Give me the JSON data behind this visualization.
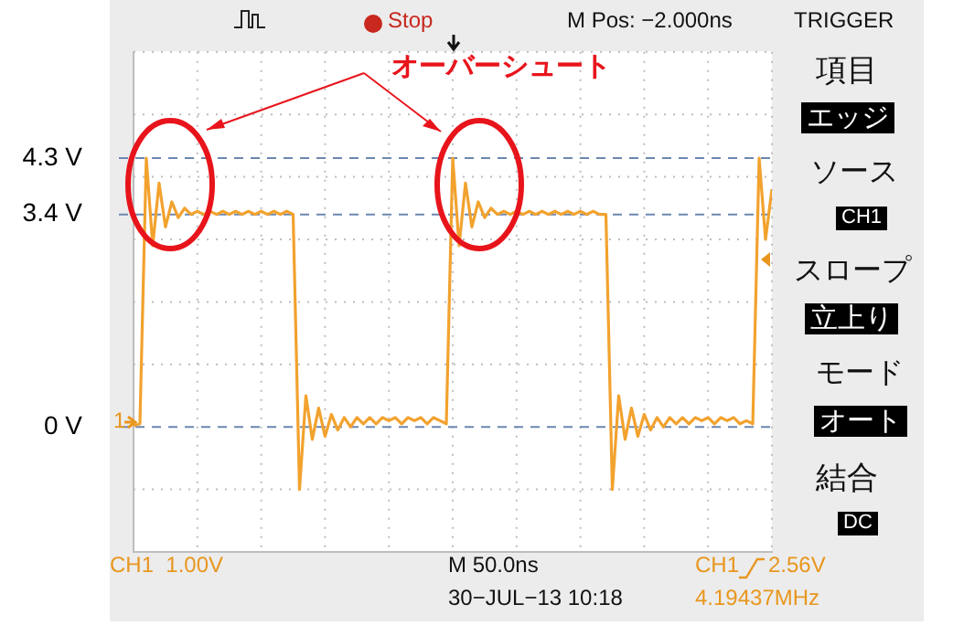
{
  "chart_data": {
    "type": "line",
    "categories": [
      null,
      null,
      null,
      null,
      null,
      null,
      null,
      null,
      null,
      null,
      null,
      null,
      null,
      null,
      null,
      null,
      null,
      null,
      null,
      null,
      null,
      null,
      null,
      null,
      null,
      null,
      null,
      null,
      null,
      null,
      null,
      null,
      null,
      null,
      null,
      null,
      null,
      null,
      null,
      null,
      null,
      null,
      null,
      null,
      null,
      null,
      null,
      null,
      null,
      null,
      null,
      null,
      null,
      null,
      null,
      null,
      null,
      null,
      null,
      null,
      null,
      null,
      null,
      null,
      null,
      null,
      null,
      null,
      null,
      null,
      null,
      null,
      null,
      null,
      null,
      null,
      null,
      null,
      null,
      null,
      null,
      null,
      null,
      null,
      null,
      null,
      null,
      null,
      null,
      null,
      null,
      null,
      null,
      null,
      null,
      null,
      null,
      null,
      null,
      null,
      null
    ],
    "ylim": [
      -2,
      6
    ],
    "yticks": [
      {
        "value": -2,
        "label": null
      },
      {
        "value": -1,
        "label": null
      },
      {
        "value": 0,
        "label": "0 V"
      },
      {
        "value": 1,
        "label": null
      },
      {
        "value": 2,
        "label": null
      },
      {
        "value": 3,
        "label": null
      },
      {
        "value": 3.4,
        "label": "3.4 V"
      },
      {
        "value": 4,
        "label": null
      },
      {
        "value": 4.3,
        "label": "4.3 V"
      },
      {
        "value": 5,
        "label": null
      },
      {
        "value": 6,
        "label": null
      }
    ],
    "tick_labels": "y",
    "grid": true,
    "marker": "none",
    "series": [
      {
        "color": "#f2a22e",
        "line_style": "solid",
        "values": [
          0.02,
          0.05,
          4.3,
          2.9,
          3.9,
          3.2,
          3.6,
          3.35,
          3.5,
          3.4,
          3.45,
          3.4,
          3.45,
          3.4,
          3.45,
          3.4,
          3.45,
          3.4,
          3.45,
          3.4,
          3.45,
          3.4,
          3.45,
          3.4,
          3.45,
          3.4,
          -1,
          0.5,
          -0.2,
          0.3,
          -0.15,
          0.2,
          -0.05,
          0.15,
          0,
          0.15,
          0.05,
          0.15,
          0.05,
          0.15,
          0.1,
          0.15,
          0.05,
          0.15,
          0.1,
          0.15,
          0.05,
          0.15,
          0.1,
          0.05,
          4.3,
          2.9,
          3.9,
          3.2,
          3.6,
          3.35,
          3.5,
          3.4,
          3.45,
          3.4,
          3.45,
          3.4,
          3.45,
          3.4,
          3.45,
          3.4,
          3.45,
          3.4,
          3.45,
          3.4,
          3.45,
          3.4,
          3.45,
          3.4,
          3.4,
          -1,
          0.5,
          -0.2,
          0.3,
          -0.15,
          0.2,
          -0.05,
          0.15,
          0,
          0.15,
          0.05,
          0.15,
          0.05,
          0.15,
          0.1,
          0.15,
          0.05,
          0.15,
          0.1,
          0.15,
          0.05,
          0.1,
          0.05,
          4.3,
          3,
          3.8
        ]
      }
    ],
    "annotations": [
      "オーバーシュート",
      "Stop",
      "M Pos: −2.000ns",
      "TRIGGER",
      "項目",
      "エッジ",
      "ソース",
      "CH1",
      "スロープ",
      "立上り",
      "モード",
      "オート",
      "結合",
      "DC",
      "CH1  1.00V",
      "M 50.0ns",
      "30−JUL−13 10:18",
      "CH1",
      "2.56V",
      "4.19437MHz",
      "1"
    ]
  }
}
